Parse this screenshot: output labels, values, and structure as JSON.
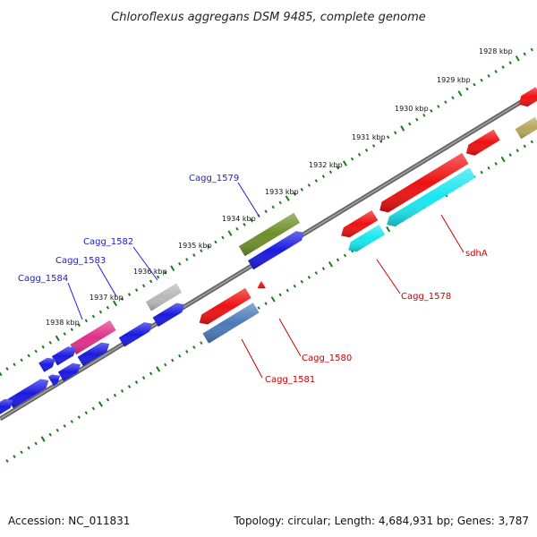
{
  "title": "Chloroflexus aggregans DSM 9485, complete genome",
  "accession": "Accession: NC_011831",
  "topology": "Topology: circular; Length: 4,684,931 bp; Genes: 3,787",
  "colors": {
    "backbone": "#7a7a7a",
    "tick_dots": "#1f7a1f",
    "forward_label": "#1a1ad6",
    "reverse_label": "#c80000"
  },
  "kbp_labels": [
    "1928 kbp",
    "1929 kbp",
    "1930 kbp",
    "1931 kbp",
    "1932 kbp",
    "1933 kbp",
    "1934 kbp",
    "1935 kbp",
    "1936 kbp",
    "1937 kbp",
    "1938 kbp"
  ],
  "gene_labels": {
    "cagg_1579": "Cagg_1579",
    "cagg_1582": "Cagg_1582",
    "cagg_1583": "Cagg_1583",
    "cagg_1584": "Cagg_1584",
    "sdhA": "sdhA",
    "cagg_1578": "Cagg_1578",
    "cagg_1580": "Cagg_1580",
    "cagg_1581": "Cagg_1581"
  },
  "genes": [
    {
      "id": "olive-gene",
      "color": "#6e8e2a"
    },
    {
      "id": "blue-gene-upper",
      "color": "#1a1ae0"
    },
    {
      "id": "gray-gene",
      "color": "#b8b8b8"
    },
    {
      "id": "magenta-gene",
      "color": "#e0308a"
    },
    {
      "id": "red-gene",
      "color": "#ee1111"
    },
    {
      "id": "cyan-gene",
      "color": "#19e6f0"
    },
    {
      "id": "steelblue-gene",
      "color": "#4a7ab8"
    },
    {
      "id": "khaki-gene",
      "color": "#b5a85c"
    }
  ]
}
